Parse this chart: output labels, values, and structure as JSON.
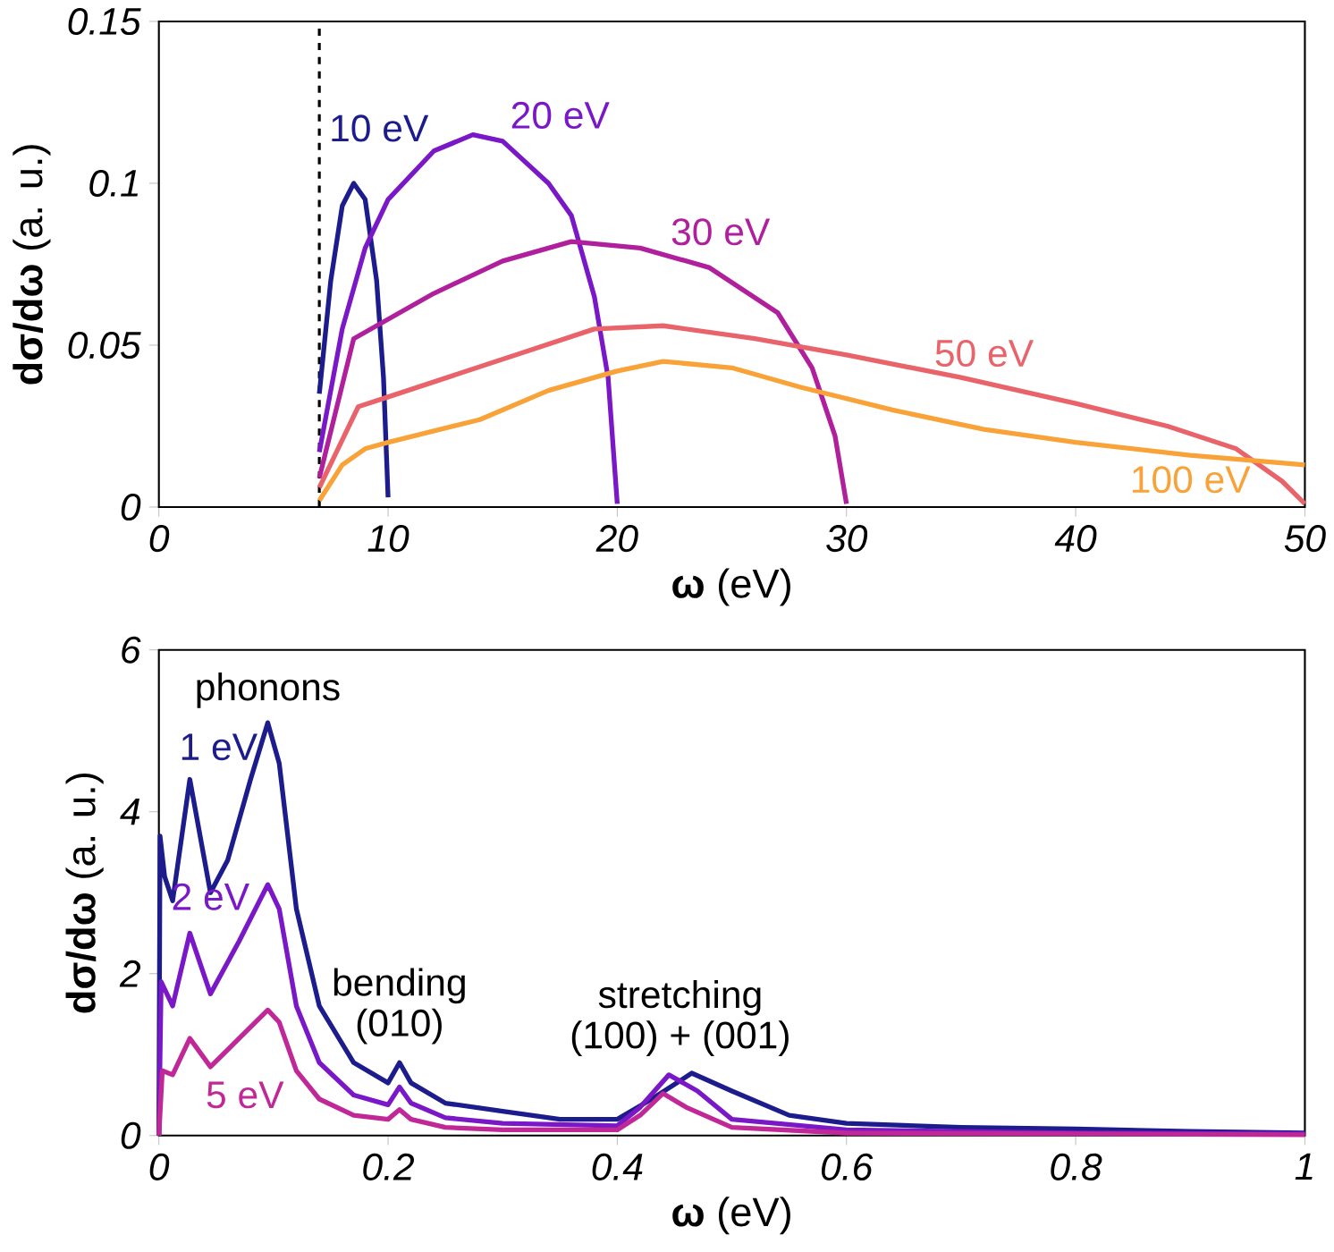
{
  "chart_data": [
    {
      "type": "line",
      "xlabel": "**ω** (eV)",
      "ylabel": "**dσ/dω** (a. u.)",
      "xlim": [
        0,
        50
      ],
      "ylim": [
        0,
        0.15
      ],
      "xticks": [
        0,
        10,
        20,
        30,
        40,
        50
      ],
      "yticks": [
        0,
        0.05,
        0.1,
        0.15
      ],
      "legend": false,
      "grid": false,
      "marker": "none",
      "line_style": "solid",
      "ref_lines": [
        {
          "axis": "x",
          "value": 7,
          "line_style": "dashed",
          "color": "#000000"
        }
      ],
      "series": [
        {
          "name": "10 eV",
          "color": "#1c1c8c",
          "x": [
            7,
            7.5,
            8,
            8.5,
            9,
            9.5,
            9.8,
            10
          ],
          "values": [
            0.035,
            0.07,
            0.093,
            0.1,
            0.095,
            0.07,
            0.04,
            0.003
          ]
        },
        {
          "name": "20 eV",
          "color": "#7a18c8",
          "x": [
            7,
            8,
            9,
            10,
            12,
            13.7,
            15,
            17,
            18,
            19,
            19.6,
            20
          ],
          "values": [
            0.017,
            0.055,
            0.08,
            0.095,
            0.11,
            0.115,
            0.113,
            0.1,
            0.09,
            0.065,
            0.04,
            0.001
          ]
        },
        {
          "name": "30 eV",
          "color": "#b0209c",
          "x": [
            7,
            8.5,
            10,
            12,
            15,
            18,
            21,
            24,
            27,
            28.5,
            29.5,
            30
          ],
          "values": [
            0.009,
            0.052,
            0.058,
            0.066,
            0.076,
            0.082,
            0.08,
            0.074,
            0.06,
            0.043,
            0.022,
            0.001
          ]
        },
        {
          "name": "50 eV",
          "color": "#e8646a",
          "x": [
            7,
            8.7,
            10,
            13,
            16,
            19,
            22,
            26,
            30,
            35,
            40,
            44,
            47,
            49,
            50
          ],
          "values": [
            0.006,
            0.031,
            0.034,
            0.041,
            0.048,
            0.055,
            0.056,
            0.052,
            0.047,
            0.04,
            0.032,
            0.025,
            0.018,
            0.008,
            0.001
          ]
        },
        {
          "name": "100 eV",
          "color": "#f8a238",
          "x": [
            7,
            8,
            9,
            10,
            14,
            17,
            20,
            22,
            25,
            28,
            32,
            36,
            40,
            45,
            50
          ],
          "values": [
            0.002,
            0.013,
            0.018,
            0.02,
            0.027,
            0.036,
            0.042,
            0.045,
            0.043,
            0.037,
            0.03,
            0.024,
            0.02,
            0.016,
            0.013
          ]
        }
      ]
    },
    {
      "type": "line",
      "xlabel": "**ω** (eV)",
      "ylabel": "**dσ/dω** (a. u.)",
      "xlim": [
        0,
        1
      ],
      "ylim": [
        0,
        6
      ],
      "xticks": [
        0,
        0.2,
        0.4,
        0.6,
        0.8,
        1
      ],
      "yticks": [
        0,
        2,
        4,
        6
      ],
      "legend": false,
      "grid": false,
      "marker": "none",
      "line_style": "solid",
      "annotations": [
        "phonons",
        "bending",
        "(010)",
        "stretching",
        "(100) + (001)"
      ],
      "series": [
        {
          "name": "1 eV",
          "color": "#1c1c8c",
          "x": [
            0,
            0.001,
            0.005,
            0.012,
            0.027,
            0.045,
            0.06,
            0.08,
            0.095,
            0.105,
            0.12,
            0.14,
            0.17,
            0.2,
            0.21,
            0.22,
            0.25,
            0.3,
            0.35,
            0.4,
            0.43,
            0.465,
            0.5,
            0.55,
            0.6,
            0.7,
            0.8,
            0.9,
            1.0
          ],
          "values": [
            0,
            3.7,
            3.2,
            2.9,
            4.4,
            3.0,
            3.4,
            4.4,
            5.1,
            4.6,
            2.8,
            1.6,
            0.9,
            0.65,
            0.9,
            0.65,
            0.4,
            0.3,
            0.2,
            0.2,
            0.45,
            0.77,
            0.55,
            0.25,
            0.15,
            0.1,
            0.08,
            0.05,
            0.03
          ]
        },
        {
          "name": "2 eV",
          "color": "#7a18c8",
          "x": [
            0,
            0.002,
            0.012,
            0.027,
            0.045,
            0.07,
            0.095,
            0.105,
            0.12,
            0.14,
            0.17,
            0.2,
            0.21,
            0.22,
            0.25,
            0.3,
            0.4,
            0.42,
            0.445,
            0.47,
            0.5,
            0.6,
            0.8,
            1.0
          ],
          "values": [
            0,
            1.9,
            1.6,
            2.5,
            1.75,
            2.4,
            3.1,
            2.8,
            1.6,
            0.9,
            0.5,
            0.38,
            0.6,
            0.4,
            0.22,
            0.15,
            0.12,
            0.35,
            0.75,
            0.55,
            0.2,
            0.07,
            0.03,
            0.02
          ]
        },
        {
          "name": "5 eV",
          "color": "#c02898",
          "x": [
            0,
            0.003,
            0.012,
            0.027,
            0.045,
            0.07,
            0.095,
            0.105,
            0.12,
            0.14,
            0.17,
            0.2,
            0.21,
            0.22,
            0.25,
            0.3,
            0.4,
            0.42,
            0.44,
            0.46,
            0.5,
            0.6,
            1.0
          ],
          "values": [
            0,
            0.8,
            0.75,
            1.2,
            0.85,
            1.2,
            1.55,
            1.4,
            0.8,
            0.45,
            0.25,
            0.2,
            0.32,
            0.2,
            0.1,
            0.07,
            0.07,
            0.25,
            0.52,
            0.35,
            0.1,
            0.03,
            0.01
          ]
        }
      ]
    }
  ]
}
